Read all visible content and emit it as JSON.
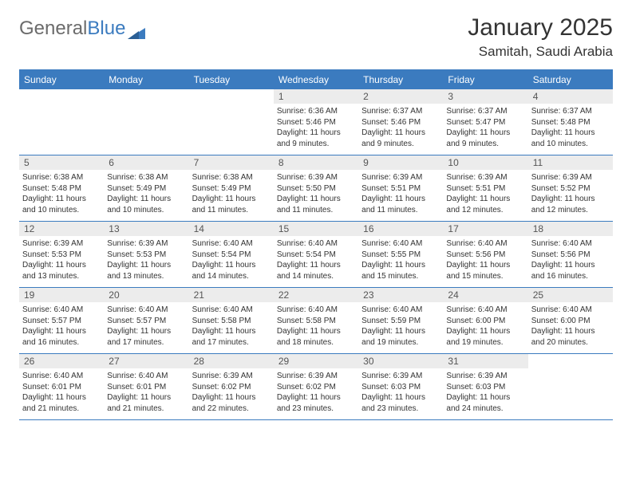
{
  "logo": {
    "text_gray": "General",
    "text_blue": "Blue"
  },
  "title": "January 2025",
  "location": "Samitah, Saudi Arabia",
  "colors": {
    "header_blue": "#3b7bbf",
    "daynum_bg": "#ececec",
    "text": "#333333",
    "logo_gray": "#6b6b6b"
  },
  "day_labels": [
    "Sunday",
    "Monday",
    "Tuesday",
    "Wednesday",
    "Thursday",
    "Friday",
    "Saturday"
  ],
  "weeks": [
    [
      {
        "n": "",
        "empty": true
      },
      {
        "n": "",
        "empty": true
      },
      {
        "n": "",
        "empty": true
      },
      {
        "n": "1",
        "sunrise": "6:36 AM",
        "sunset": "5:46 PM",
        "daylight": "11 hours and 9 minutes."
      },
      {
        "n": "2",
        "sunrise": "6:37 AM",
        "sunset": "5:46 PM",
        "daylight": "11 hours and 9 minutes."
      },
      {
        "n": "3",
        "sunrise": "6:37 AM",
        "sunset": "5:47 PM",
        "daylight": "11 hours and 9 minutes."
      },
      {
        "n": "4",
        "sunrise": "6:37 AM",
        "sunset": "5:48 PM",
        "daylight": "11 hours and 10 minutes."
      }
    ],
    [
      {
        "n": "5",
        "sunrise": "6:38 AM",
        "sunset": "5:48 PM",
        "daylight": "11 hours and 10 minutes."
      },
      {
        "n": "6",
        "sunrise": "6:38 AM",
        "sunset": "5:49 PM",
        "daylight": "11 hours and 10 minutes."
      },
      {
        "n": "7",
        "sunrise": "6:38 AM",
        "sunset": "5:49 PM",
        "daylight": "11 hours and 11 minutes."
      },
      {
        "n": "8",
        "sunrise": "6:39 AM",
        "sunset": "5:50 PM",
        "daylight": "11 hours and 11 minutes."
      },
      {
        "n": "9",
        "sunrise": "6:39 AM",
        "sunset": "5:51 PM",
        "daylight": "11 hours and 11 minutes."
      },
      {
        "n": "10",
        "sunrise": "6:39 AM",
        "sunset": "5:51 PM",
        "daylight": "11 hours and 12 minutes."
      },
      {
        "n": "11",
        "sunrise": "6:39 AM",
        "sunset": "5:52 PM",
        "daylight": "11 hours and 12 minutes."
      }
    ],
    [
      {
        "n": "12",
        "sunrise": "6:39 AM",
        "sunset": "5:53 PM",
        "daylight": "11 hours and 13 minutes."
      },
      {
        "n": "13",
        "sunrise": "6:39 AM",
        "sunset": "5:53 PM",
        "daylight": "11 hours and 13 minutes."
      },
      {
        "n": "14",
        "sunrise": "6:40 AM",
        "sunset": "5:54 PM",
        "daylight": "11 hours and 14 minutes."
      },
      {
        "n": "15",
        "sunrise": "6:40 AM",
        "sunset": "5:54 PM",
        "daylight": "11 hours and 14 minutes."
      },
      {
        "n": "16",
        "sunrise": "6:40 AM",
        "sunset": "5:55 PM",
        "daylight": "11 hours and 15 minutes."
      },
      {
        "n": "17",
        "sunrise": "6:40 AM",
        "sunset": "5:56 PM",
        "daylight": "11 hours and 15 minutes."
      },
      {
        "n": "18",
        "sunrise": "6:40 AM",
        "sunset": "5:56 PM",
        "daylight": "11 hours and 16 minutes."
      }
    ],
    [
      {
        "n": "19",
        "sunrise": "6:40 AM",
        "sunset": "5:57 PM",
        "daylight": "11 hours and 16 minutes."
      },
      {
        "n": "20",
        "sunrise": "6:40 AM",
        "sunset": "5:57 PM",
        "daylight": "11 hours and 17 minutes."
      },
      {
        "n": "21",
        "sunrise": "6:40 AM",
        "sunset": "5:58 PM",
        "daylight": "11 hours and 17 minutes."
      },
      {
        "n": "22",
        "sunrise": "6:40 AM",
        "sunset": "5:58 PM",
        "daylight": "11 hours and 18 minutes."
      },
      {
        "n": "23",
        "sunrise": "6:40 AM",
        "sunset": "5:59 PM",
        "daylight": "11 hours and 19 minutes."
      },
      {
        "n": "24",
        "sunrise": "6:40 AM",
        "sunset": "6:00 PM",
        "daylight": "11 hours and 19 minutes."
      },
      {
        "n": "25",
        "sunrise": "6:40 AM",
        "sunset": "6:00 PM",
        "daylight": "11 hours and 20 minutes."
      }
    ],
    [
      {
        "n": "26",
        "sunrise": "6:40 AM",
        "sunset": "6:01 PM",
        "daylight": "11 hours and 21 minutes."
      },
      {
        "n": "27",
        "sunrise": "6:40 AM",
        "sunset": "6:01 PM",
        "daylight": "11 hours and 21 minutes."
      },
      {
        "n": "28",
        "sunrise": "6:39 AM",
        "sunset": "6:02 PM",
        "daylight": "11 hours and 22 minutes."
      },
      {
        "n": "29",
        "sunrise": "6:39 AM",
        "sunset": "6:02 PM",
        "daylight": "11 hours and 23 minutes."
      },
      {
        "n": "30",
        "sunrise": "6:39 AM",
        "sunset": "6:03 PM",
        "daylight": "11 hours and 23 minutes."
      },
      {
        "n": "31",
        "sunrise": "6:39 AM",
        "sunset": "6:03 PM",
        "daylight": "11 hours and 24 minutes."
      },
      {
        "n": "",
        "empty": true
      }
    ]
  ],
  "labels": {
    "sunrise_prefix": "Sunrise: ",
    "sunset_prefix": "Sunset: ",
    "daylight_prefix": "Daylight: "
  }
}
